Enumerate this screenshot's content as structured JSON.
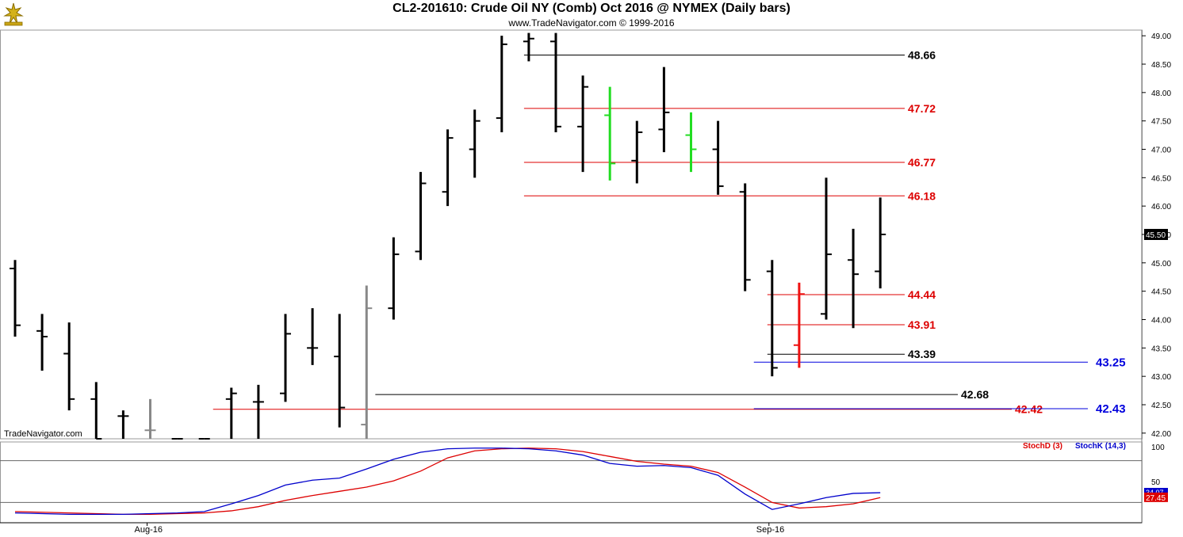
{
  "title": "CL2-201610:  Crude Oil NY (Comb) Oct 2016 @ NYMEX  (Daily bars)",
  "subtitle": "www.TradeNavigator.com © 1999-2016",
  "watermark": "TradeNavigator.com",
  "colors": {
    "up_bar": "#000000",
    "reversal_up": "#22dd22",
    "reversal_down": "#ee1111",
    "outside_bar": "#888888",
    "level_black": "#000000",
    "level_red": "#dd0000",
    "level_blue": "#0000dd",
    "stoch_d": "#dd0000",
    "stoch_k": "#0000cc"
  },
  "chart_data": [
    {
      "type": "ohlc",
      "title": "CL2-201610:  Crude Oil NY (Comb) Oct 2016 @ NYMEX  (Daily bars)",
      "ylim": [
        41.9,
        49.1
      ],
      "y_ticks": [
        "49.00",
        "48.50",
        "48.00",
        "47.50",
        "47.00",
        "46.50",
        "46.00",
        "45.50",
        "45.00",
        "44.50",
        "44.00",
        "43.50",
        "43.00",
        "42.50",
        "42.00"
      ],
      "last_price": "45.50",
      "x_labels": [
        {
          "label": "Aug-16",
          "bar": 5
        },
        {
          "label": "Sep-16",
          "bar": 28
        }
      ],
      "bars": [
        {
          "o": 44.9,
          "h": 45.05,
          "l": 43.7,
          "c": 43.9
        },
        {
          "o": 43.8,
          "h": 44.1,
          "l": 43.1,
          "c": 43.7
        },
        {
          "o": 43.4,
          "h": 43.95,
          "l": 42.4,
          "c": 42.6
        },
        {
          "o": 42.6,
          "h": 42.9,
          "l": 41.9,
          "c": 41.9
        },
        {
          "o": 42.3,
          "h": 42.4,
          "l": 41.9,
          "c": 42.3
        },
        {
          "o": 42.05,
          "h": 42.6,
          "l": 41.9,
          "c": 42.05,
          "color": "outside_bar"
        },
        {
          "o": 41.9,
          "h": 41.9,
          "l": 41.9,
          "c": 41.9
        },
        {
          "o": 41.9,
          "h": 41.9,
          "l": 41.9,
          "c": 41.9
        },
        {
          "o": 42.6,
          "h": 42.8,
          "l": 41.9,
          "c": 42.7
        },
        {
          "o": 42.55,
          "h": 42.85,
          "l": 41.9,
          "c": 42.55
        },
        {
          "o": 42.7,
          "h": 44.1,
          "l": 42.55,
          "c": 43.75
        },
        {
          "o": 43.5,
          "h": 44.2,
          "l": 43.2,
          "c": 43.5
        },
        {
          "o": 43.35,
          "h": 44.1,
          "l": 42.1,
          "c": 42.45
        },
        {
          "o": 42.15,
          "h": 44.6,
          "l": 41.9,
          "c": 44.2,
          "color": "outside_bar"
        },
        {
          "o": 44.2,
          "h": 45.45,
          "l": 44.0,
          "c": 45.15
        },
        {
          "o": 45.2,
          "h": 46.6,
          "l": 45.05,
          "c": 46.4
        },
        {
          "o": 46.25,
          "h": 47.35,
          "l": 46.0,
          "c": 47.2
        },
        {
          "o": 47.0,
          "h": 47.7,
          "l": 46.5,
          "c": 47.5
        },
        {
          "o": 47.55,
          "h": 49.0,
          "l": 47.3,
          "c": 48.85
        },
        {
          "o": 48.9,
          "h": 49.05,
          "l": 48.55,
          "c": 48.95
        },
        {
          "o": 48.9,
          "h": 49.05,
          "l": 47.3,
          "c": 47.4
        },
        {
          "o": 47.4,
          "h": 48.3,
          "l": 46.6,
          "c": 48.1
        },
        {
          "o": 47.6,
          "h": 48.1,
          "l": 46.45,
          "c": 46.75,
          "color": "reversal_up"
        },
        {
          "o": 46.8,
          "h": 47.5,
          "l": 46.4,
          "c": 47.3
        },
        {
          "o": 47.35,
          "h": 48.45,
          "l": 46.95,
          "c": 47.65
        },
        {
          "o": 47.25,
          "h": 47.65,
          "l": 46.6,
          "c": 47.0,
          "color": "reversal_up"
        },
        {
          "o": 47.0,
          "h": 47.5,
          "l": 46.2,
          "c": 46.35
        },
        {
          "o": 46.25,
          "h": 46.4,
          "l": 44.5,
          "c": 44.7
        },
        {
          "o": 44.85,
          "h": 45.05,
          "l": 43.0,
          "c": 43.15
        },
        {
          "o": 43.55,
          "h": 44.65,
          "l": 43.15,
          "c": 44.45,
          "color": "reversal_down"
        },
        {
          "o": 44.1,
          "h": 46.5,
          "l": 44.0,
          "c": 45.15
        },
        {
          "o": 45.05,
          "h": 45.6,
          "l": 43.85,
          "c": 44.8
        },
        {
          "o": 44.85,
          "h": 46.15,
          "l": 44.55,
          "c": 45.5
        }
      ],
      "levels": [
        {
          "value": 48.66,
          "label": "48.66",
          "color": "level_black",
          "from_bar": 19,
          "to_bar": 33
        },
        {
          "value": 47.72,
          "label": "47.72",
          "color": "level_red",
          "from_bar": 19,
          "to_bar": 33
        },
        {
          "value": 46.77,
          "label": "46.77",
          "color": "level_red",
          "from_bar": 19,
          "to_bar": 33
        },
        {
          "value": 46.18,
          "label": "46.18",
          "color": "level_red",
          "from_bar": 19,
          "to_bar": 33
        },
        {
          "value": 44.44,
          "label": "44.44",
          "color": "level_red",
          "from_bar": 28,
          "to_bar": 33
        },
        {
          "value": 43.91,
          "label": "43.91",
          "color": "level_red",
          "from_bar": 28,
          "to_bar": 33
        },
        {
          "value": 43.39,
          "label": "43.39",
          "color": "level_black",
          "from_bar": 28,
          "to_bar": 33
        },
        {
          "value": 43.25,
          "label": "43.25",
          "color": "level_blue",
          "from_bar": 27.5,
          "to_bar": 40
        },
        {
          "value": 42.68,
          "label": "42.68",
          "color": "level_black",
          "from_bar": 13.5,
          "to_bar": 35
        },
        {
          "value": 42.42,
          "label": "42.42",
          "color": "level_red",
          "from_bar": 7.5,
          "to_bar": 37
        },
        {
          "value": 42.43,
          "label": "42.43",
          "color": "level_blue",
          "from_bar": 27.5,
          "to_bar": 40
        }
      ]
    },
    {
      "type": "line",
      "title": "",
      "ylim": [
        0,
        100
      ],
      "y_ticks": [
        "100",
        "50"
      ],
      "reference_lines": [
        80,
        20
      ],
      "last_values": {
        "k": "34.07",
        "d": "27.45"
      },
      "series": [
        {
          "name": "StochD (3)",
          "color": "stoch_d",
          "values": [
            7,
            6,
            5,
            4,
            3,
            3,
            4,
            5,
            8,
            14,
            23,
            30,
            36,
            42,
            51,
            65,
            84,
            94,
            97,
            98,
            97,
            93,
            86,
            79,
            75,
            72,
            63,
            42,
            20,
            12,
            14,
            18,
            27
          ]
        },
        {
          "name": "StochK (14,3)",
          "color": "stoch_k",
          "values": [
            5,
            4,
            3,
            3,
            3,
            4,
            5,
            7,
            18,
            30,
            45,
            52,
            55,
            68,
            82,
            92,
            97,
            98,
            98,
            97,
            94,
            88,
            76,
            72,
            73,
            70,
            59,
            32,
            10,
            18,
            27,
            33,
            34
          ]
        }
      ]
    }
  ]
}
